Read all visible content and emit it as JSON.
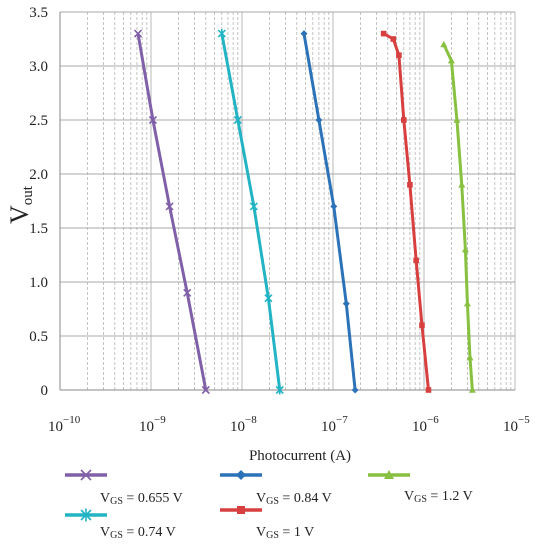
{
  "chart_data": {
    "type": "line",
    "xscale": "log",
    "xlim": [
      1e-10,
      1e-05
    ],
    "ylim": [
      0,
      3.5
    ],
    "grid": true,
    "xlabel": "Photocurrent (A)",
    "ylabel_main": "V",
    "ylabel_sub": "out",
    "x_ticks": [
      {
        "base": "10",
        "exp": "−10",
        "value": 1e-10
      },
      {
        "base": "10",
        "exp": "−9",
        "value": 1e-09
      },
      {
        "base": "10",
        "exp": "−8",
        "value": 1e-08
      },
      {
        "base": "10",
        "exp": "−7",
        "value": 1e-07
      },
      {
        "base": "10",
        "exp": "−6",
        "value": 1e-06
      },
      {
        "base": "10",
        "exp": "−5",
        "value": 1e-05
      }
    ],
    "y_ticks": [
      "0",
      "0.5",
      "1.0",
      "1.5",
      "2.0",
      "2.5",
      "3.0",
      "3.5"
    ],
    "legend_placement": "bottom",
    "series": [
      {
        "name_prefix": "V",
        "name_sub": "GS",
        "name_suffix": " = 0.655 V",
        "color": "#8060a8",
        "marker": "x",
        "points": [
          [
            7.2e-10,
            3.3
          ],
          [
            1.05e-09,
            2.5
          ],
          [
            1.6e-09,
            1.7
          ],
          [
            2.5e-09,
            0.9
          ],
          [
            4e-09,
            0.0
          ]
        ]
      },
      {
        "name_prefix": "V",
        "name_sub": "GS",
        "name_suffix": " = 0.74 V",
        "color": "#22b4c4",
        "marker": "star",
        "points": [
          [
            6e-09,
            3.3
          ],
          [
            9e-09,
            2.5
          ],
          [
            1.35e-08,
            1.7
          ],
          [
            1.95e-08,
            0.85
          ],
          [
            2.6e-08,
            0.0
          ]
        ]
      },
      {
        "name_prefix": "V",
        "name_sub": "GS",
        "name_suffix": " = 0.84 V",
        "color": "#2c72b8",
        "marker": "diamond",
        "points": [
          [
            4.8e-08,
            3.3
          ],
          [
            7e-08,
            2.5
          ],
          [
            1.02e-07,
            1.7
          ],
          [
            1.4e-07,
            0.8
          ],
          [
            1.75e-07,
            0.0
          ]
        ]
      },
      {
        "name_prefix": "V",
        "name_sub": "GS",
        "name_suffix": " = 1 V",
        "color": "#d84040",
        "marker": "square",
        "points": [
          [
            3.6e-07,
            3.3
          ],
          [
            4.6e-07,
            3.25
          ],
          [
            5.3e-07,
            3.1
          ],
          [
            6e-07,
            2.5
          ],
          [
            7e-07,
            1.9
          ],
          [
            8.2e-07,
            1.2
          ],
          [
            9.5e-07,
            0.6
          ],
          [
            1.12e-06,
            0.0
          ]
        ]
      },
      {
        "name_prefix": "V",
        "name_sub": "GS",
        "name_suffix": " = 1.2 V",
        "color": "#88c040",
        "marker": "triangle",
        "points": [
          [
            1.65e-06,
            3.2
          ],
          [
            2e-06,
            3.05
          ],
          [
            2.3e-06,
            2.5
          ],
          [
            2.6e-06,
            1.9
          ],
          [
            2.85e-06,
            1.3
          ],
          [
            3e-06,
            0.8
          ],
          [
            3.2e-06,
            0.3
          ],
          [
            3.4e-06,
            0.0
          ]
        ]
      }
    ]
  }
}
